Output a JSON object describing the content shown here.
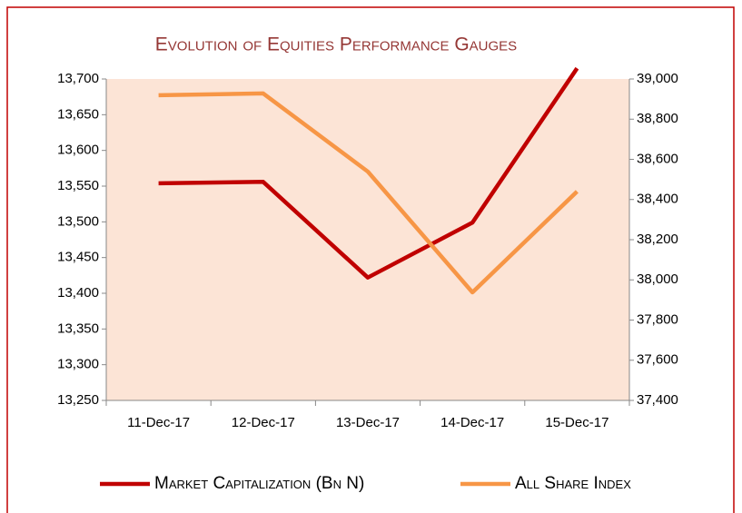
{
  "chart_data": {
    "type": "line",
    "title": "Evolution of Equities Performance Gauges",
    "categories": [
      "11-Dec-17",
      "12-Dec-17",
      "13-Dec-17",
      "14-Dec-17",
      "15-Dec-17"
    ],
    "series": [
      {
        "name": "Market Capitalization (Bn N)",
        "color": "#c00000",
        "values": [
          13554,
          13556,
          13422,
          13499,
          13715
        ]
      },
      {
        "name": "All Share Index",
        "color": "#f79646",
        "axis": "y2",
        "values": [
          38919,
          38928,
          38539,
          37938,
          38440
        ]
      }
    ],
    "ylim": [
      13250,
      13700
    ],
    "yticks": [
      {
        "value": 13250,
        "label": "13,250"
      },
      {
        "value": 13300,
        "label": "13,300"
      },
      {
        "value": 13350,
        "label": "13,350"
      },
      {
        "value": 13400,
        "label": "13,400"
      },
      {
        "value": 13450,
        "label": "13,450"
      },
      {
        "value": 13500,
        "label": "13,500"
      },
      {
        "value": 13550,
        "label": "13,550"
      },
      {
        "value": 13600,
        "label": "13,600"
      },
      {
        "value": 13650,
        "label": "13,650"
      },
      {
        "value": 13700,
        "label": "13,700"
      }
    ],
    "y2lim": [
      37400,
      39000
    ],
    "y2ticks": [
      {
        "value": 37400,
        "label": "37,400"
      },
      {
        "value": 37600,
        "label": "37,600"
      },
      {
        "value": 37800,
        "label": "37,800"
      },
      {
        "value": 38000,
        "label": "38,000"
      },
      {
        "value": 38200,
        "label": "38,200"
      },
      {
        "value": 38400,
        "label": "38,400"
      },
      {
        "value": 38600,
        "label": "38,600"
      },
      {
        "value": 38800,
        "label": "38,800"
      },
      {
        "value": 39000,
        "label": "39,000"
      }
    ],
    "plot_background": "#fce4d6",
    "legend": "bottom"
  }
}
